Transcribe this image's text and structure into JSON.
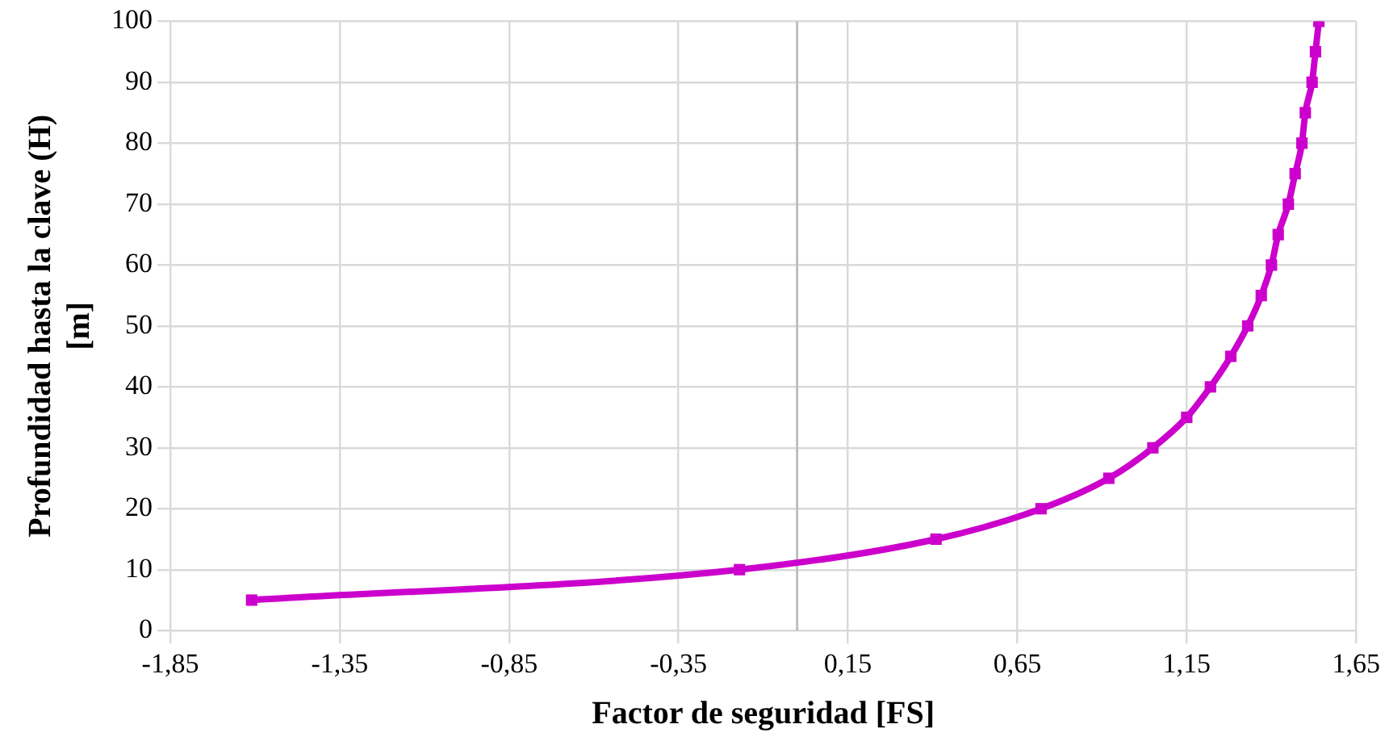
{
  "chart_data": {
    "type": "line",
    "xlabel": "Factor de seguridad [FS]",
    "ylabel": "Profundidad hasta la clave (H) [m]",
    "x": [
      -1.61,
      -0.17,
      0.41,
      0.72,
      0.92,
      1.05,
      1.15,
      1.22,
      1.28,
      1.33,
      1.37,
      1.4,
      1.42,
      1.45,
      1.47,
      1.49,
      1.5,
      1.52,
      1.53,
      1.54
    ],
    "series": [
      {
        "color": "#cc00cc",
        "values": [
          5,
          10,
          15,
          20,
          25,
          30,
          35,
          40,
          45,
          50,
          55,
          60,
          65,
          70,
          75,
          80,
          85,
          90,
          95,
          100
        ]
      }
    ],
    "xlim": [
      -1.85,
      1.65
    ],
    "xticks": [
      {
        "value": -1.85,
        "label": "-1,85"
      },
      {
        "value": -1.35,
        "label": "-1,35"
      },
      {
        "value": -0.85,
        "label": "-0,85"
      },
      {
        "value": -0.35,
        "label": "-0,35"
      },
      {
        "value": 0.15,
        "label": "0,15"
      },
      {
        "value": 0.65,
        "label": "0,65"
      },
      {
        "value": 1.15,
        "label": "1,15"
      },
      {
        "value": 1.65,
        "label": "1,65"
      }
    ],
    "ylim": [
      0,
      100
    ],
    "yticks": [
      0,
      10,
      20,
      30,
      40,
      50,
      60,
      70,
      80,
      90,
      100
    ],
    "ref_lines": [
      {
        "axis": "x",
        "value": 0,
        "color": "#bfbfbf"
      }
    ],
    "grid": true,
    "legend": false,
    "marker": "square",
    "line_style": "solid"
  }
}
